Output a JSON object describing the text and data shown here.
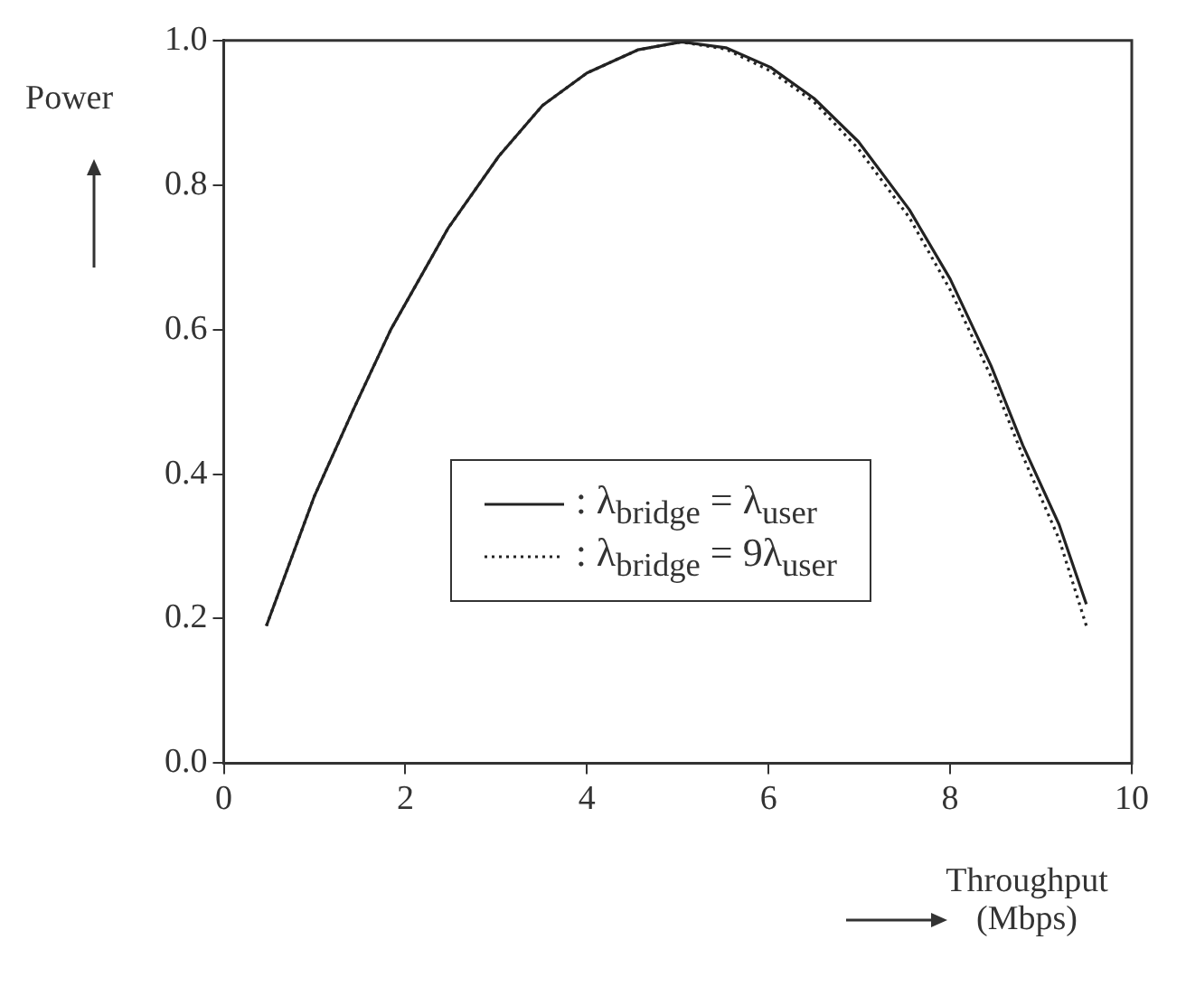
{
  "chart_data": {
    "type": "line",
    "xlabel": "Throughput (Mbps)",
    "ylabel": "Power",
    "xlim": [
      0,
      10
    ],
    "xticks": [
      0,
      2,
      4,
      6,
      8,
      10
    ],
    "ylim": [
      0,
      1
    ],
    "yticks": [
      {
        "value": 0,
        "label": "0.0"
      },
      {
        "value": 0.2,
        "label": "0.2"
      },
      {
        "value": 0.4,
        "label": "0.4"
      },
      {
        "value": 0.6,
        "label": "0.6"
      },
      {
        "value": 0.8,
        "label": "0.8"
      },
      {
        "value": 1,
        "label": "1.0"
      }
    ],
    "grid": false,
    "legend": "bottom",
    "marker": "none",
    "series": [
      {
        "name": ": λ$_{bridge}$ = λ$_{user}$",
        "color": "#222222",
        "line_style": "solid",
        "x": [
          0.47,
          1.0,
          1.43,
          1.84,
          2.47,
          3.03,
          3.51,
          4.0,
          4.56,
          5.04,
          5.53,
          6.02,
          6.5,
          6.99,
          7.55,
          8.0,
          8.45,
          8.8,
          9.2,
          9.5
        ],
        "values": [
          0.19,
          0.37,
          0.49,
          0.6,
          0.74,
          0.84,
          0.91,
          0.955,
          0.987,
          0.998,
          0.99,
          0.963,
          0.92,
          0.86,
          0.766,
          0.67,
          0.55,
          0.44,
          0.33,
          0.22
        ]
      },
      {
        "name": ": λ$_{bridge}$ = 9λ$_{user}$",
        "color": "#222222",
        "line_style": "dotted",
        "x": [
          0.47,
          1.0,
          1.43,
          1.84,
          2.47,
          3.03,
          3.51,
          4.0,
          4.56,
          5.04,
          5.53,
          6.02,
          6.5,
          6.99,
          7.55,
          8.0,
          8.45,
          8.8,
          9.2,
          9.5
        ],
        "values": [
          0.19,
          0.37,
          0.49,
          0.6,
          0.74,
          0.84,
          0.91,
          0.955,
          0.987,
          0.998,
          0.988,
          0.958,
          0.915,
          0.85,
          0.755,
          0.655,
          0.535,
          0.425,
          0.31,
          0.19
        ]
      }
    ]
  }
}
